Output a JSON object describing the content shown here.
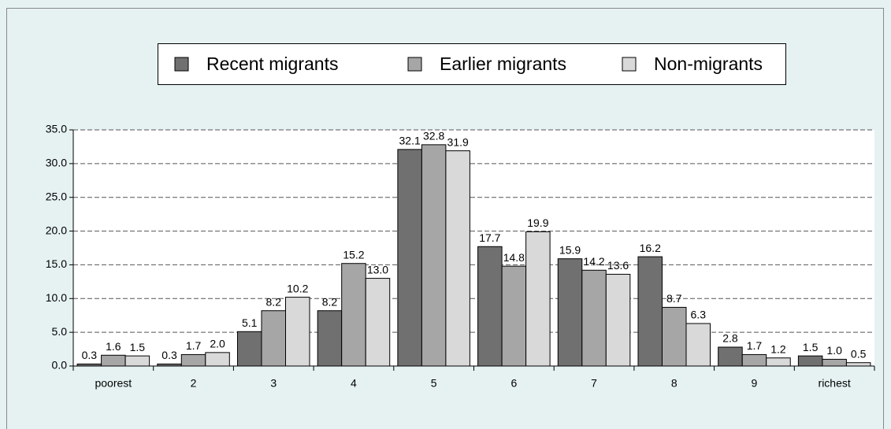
{
  "chart_data": {
    "type": "bar",
    "categories": [
      "poorest",
      "2",
      "3",
      "4",
      "5",
      "6",
      "7",
      "8",
      "9",
      "richest"
    ],
    "series": [
      {
        "name": "Recent migrants",
        "color": "#707070",
        "values": [
          0.3,
          0.3,
          5.1,
          8.2,
          32.1,
          17.7,
          15.9,
          16.2,
          2.8,
          1.5
        ],
        "value_labels": [
          "0.3",
          "0.3",
          "5.1",
          "8.2",
          "32.1",
          "17.7",
          "15.9",
          "16.2",
          "2.8",
          "1.5"
        ]
      },
      {
        "name": "Earlier migrants",
        "color": "#a6a6a6",
        "values": [
          1.6,
          1.7,
          8.2,
          15.2,
          32.8,
          14.8,
          14.2,
          8.7,
          1.7,
          1.0
        ],
        "value_labels": [
          "1.6",
          "1.7",
          "8.2",
          "15.2",
          "32.8",
          "14.8",
          "14.2",
          "8.7",
          "1.7",
          "1.0"
        ]
      },
      {
        "name": "Non-migrants",
        "color": "#d9d9d9",
        "values": [
          1.5,
          2.0,
          10.2,
          13.0,
          31.9,
          19.9,
          13.6,
          6.3,
          1.2,
          0.5
        ],
        "value_labels": [
          "1.5",
          "2.0",
          "10.2",
          "13.0",
          "31.9",
          "19.9",
          "13.6",
          "6.3",
          "1.2",
          "0.5"
        ]
      }
    ],
    "ylim": [
      0,
      35
    ],
    "yticks": [
      {
        "value": 0,
        "label": "0.0"
      },
      {
        "value": 5,
        "label": "5.0"
      },
      {
        "value": 10,
        "label": "10.0"
      },
      {
        "value": 15,
        "label": "15.0"
      },
      {
        "value": 20,
        "label": "20.0"
      },
      {
        "value": 25,
        "label": "25.0"
      },
      {
        "value": 30,
        "label": "30.0"
      },
      {
        "value": 35,
        "label": "35.0"
      }
    ],
    "grid": true,
    "legend": "top"
  }
}
